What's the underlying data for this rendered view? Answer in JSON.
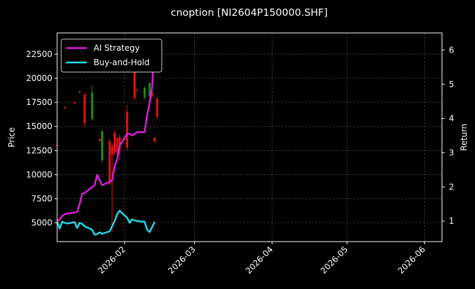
{
  "chart_data": {
    "type": "line",
    "title": "cnoption [NI2604P150000.SHF]",
    "ylabel_left": "Price",
    "ylabel_right": "Return",
    "xlim": [
      "2026-01-05",
      "2026-06-08"
    ],
    "ylim_left": [
      3050,
      24700
    ],
    "ylim_right": [
      0.4,
      6.5
    ],
    "x_ticks": [
      "2026-02-01",
      "2026-03-01",
      "2026-04-01",
      "2026-05-01",
      "2026-06-01"
    ],
    "x_tick_labels": [
      "2026-02",
      "2026-03",
      "2026-04",
      "2026-05",
      "2026-06"
    ],
    "y_ticks_left": [
      5000,
      7500,
      10000,
      12500,
      15000,
      17500,
      20000,
      22500
    ],
    "y_tick_labels_left": [
      "5000",
      "7500",
      "10000",
      "12500",
      "15000",
      "17500",
      "20000",
      "22500"
    ],
    "y_ticks_right": [
      1,
      2,
      3,
      4,
      5,
      6
    ],
    "y_tick_labels_right": [
      "1",
      "2",
      "3",
      "4",
      "5",
      "6"
    ],
    "grid": true,
    "legend_position": "top-left",
    "colors": {
      "background": "#000000",
      "ai_strategy": "#e01ee0",
      "buy_and_hold": "#22e0f0",
      "up_candle": "#1a8f1a",
      "down_candle": "#e01414",
      "grid": "#555555",
      "text": "#ffffff"
    },
    "series": [
      {
        "name": "AI Strategy",
        "x": [
          "2026-01-05",
          "2026-01-06",
          "2026-01-07",
          "2026-01-08",
          "2026-01-09",
          "2026-01-12",
          "2026-01-13",
          "2026-01-14",
          "2026-01-15",
          "2026-01-16",
          "2026-01-19",
          "2026-01-20",
          "2026-01-21",
          "2026-01-22",
          "2026-01-23",
          "2026-01-26",
          "2026-01-27",
          "2026-01-28",
          "2026-01-29",
          "2026-01-30",
          "2026-02-02",
          "2026-02-03",
          "2026-02-04",
          "2026-02-05",
          "2026-02-06",
          "2026-02-09",
          "2026-02-10",
          "2026-02-11",
          "2026-02-12",
          "2026-02-13"
        ],
        "values": [
          1.0,
          1.05,
          1.15,
          1.2,
          1.22,
          1.25,
          1.27,
          1.5,
          1.8,
          1.82,
          2.0,
          2.05,
          2.35,
          2.2,
          2.05,
          2.15,
          2.2,
          2.6,
          2.8,
          3.2,
          3.55,
          3.55,
          3.5,
          3.55,
          3.6,
          3.6,
          4.1,
          4.45,
          4.9,
          6.1
        ]
      },
      {
        "name": "Buy-and-Hold",
        "x": [
          "2026-01-05",
          "2026-01-06",
          "2026-01-07",
          "2026-01-08",
          "2026-01-09",
          "2026-01-12",
          "2026-01-13",
          "2026-01-14",
          "2026-01-15",
          "2026-01-16",
          "2026-01-19",
          "2026-01-20",
          "2026-01-21",
          "2026-01-22",
          "2026-01-23",
          "2026-01-26",
          "2026-01-27",
          "2026-01-28",
          "2026-01-29",
          "2026-01-30",
          "2026-02-02",
          "2026-02-03",
          "2026-02-04",
          "2026-02-05",
          "2026-02-06",
          "2026-02-09",
          "2026-02-10",
          "2026-02-11",
          "2026-02-12",
          "2026-02-13"
        ],
        "values": [
          0.98,
          0.78,
          0.98,
          0.95,
          0.93,
          0.97,
          0.8,
          0.95,
          0.92,
          0.85,
          0.75,
          0.6,
          0.62,
          0.67,
          0.63,
          0.7,
          0.85,
          1.0,
          1.2,
          1.3,
          1.1,
          0.95,
          1.05,
          1.02,
          1.0,
          0.98,
          0.75,
          0.68,
          0.82,
          0.98
        ]
      }
    ],
    "candles": [
      {
        "x": "2026-01-05",
        "open": 13100,
        "close": 13000,
        "high": 13200,
        "low": 12900
      },
      {
        "x": "2026-01-08",
        "open": 17000,
        "close": 16900,
        "high": 17100,
        "low": 16800
      },
      {
        "x": "2026-01-12",
        "open": 17500,
        "close": 17400,
        "high": 17600,
        "low": 17300
      },
      {
        "x": "2026-01-14",
        "open": 18600,
        "close": 18500,
        "high": 18700,
        "low": 18400
      },
      {
        "x": "2026-01-16",
        "open": 18300,
        "close": 15300,
        "high": 18500,
        "low": 15000
      },
      {
        "x": "2026-01-19",
        "open": 15800,
        "close": 18500,
        "high": 19300,
        "low": 15600
      },
      {
        "x": "2026-01-22",
        "open": 13700,
        "close": 13500,
        "high": 13800,
        "low": 13400
      },
      {
        "x": "2026-01-23",
        "open": 11500,
        "close": 14500,
        "high": 14600,
        "low": 11300
      },
      {
        "x": "2026-01-26",
        "open": 13500,
        "close": 9000,
        "high": 13700,
        "low": 8900
      },
      {
        "x": "2026-01-27",
        "open": 13000,
        "close": 12000,
        "high": 13200,
        "low": 4000
      },
      {
        "x": "2026-01-28",
        "open": 14300,
        "close": 12300,
        "high": 14600,
        "low": 12000
      },
      {
        "x": "2026-01-29",
        "open": 13800,
        "close": 12300,
        "high": 14000,
        "low": 12000
      },
      {
        "x": "2026-01-30",
        "open": 13900,
        "close": 12500,
        "high": 14200,
        "low": 11500
      },
      {
        "x": "2026-02-02",
        "open": 16500,
        "close": 12800,
        "high": 17200,
        "low": 12500
      },
      {
        "x": "2026-02-05",
        "open": 22000,
        "close": 18000,
        "high": 23500,
        "low": 17800
      },
      {
        "x": "2026-02-06",
        "open": 18800,
        "close": 18700,
        "high": 18900,
        "low": 18600
      },
      {
        "x": "2026-02-09",
        "open": 18000,
        "close": 19000,
        "high": 19200,
        "low": 17800
      },
      {
        "x": "2026-02-11",
        "open": 18200,
        "close": 19500,
        "high": 19600,
        "low": 18000
      },
      {
        "x": "2026-02-12",
        "open": 18500,
        "close": 18200,
        "high": 18700,
        "low": 18000
      },
      {
        "x": "2026-02-13",
        "open": 13800,
        "close": 13500,
        "high": 13900,
        "low": 13300
      },
      {
        "x": "2026-02-14",
        "open": 17900,
        "close": 16000,
        "high": 18000,
        "low": 15800
      }
    ]
  }
}
